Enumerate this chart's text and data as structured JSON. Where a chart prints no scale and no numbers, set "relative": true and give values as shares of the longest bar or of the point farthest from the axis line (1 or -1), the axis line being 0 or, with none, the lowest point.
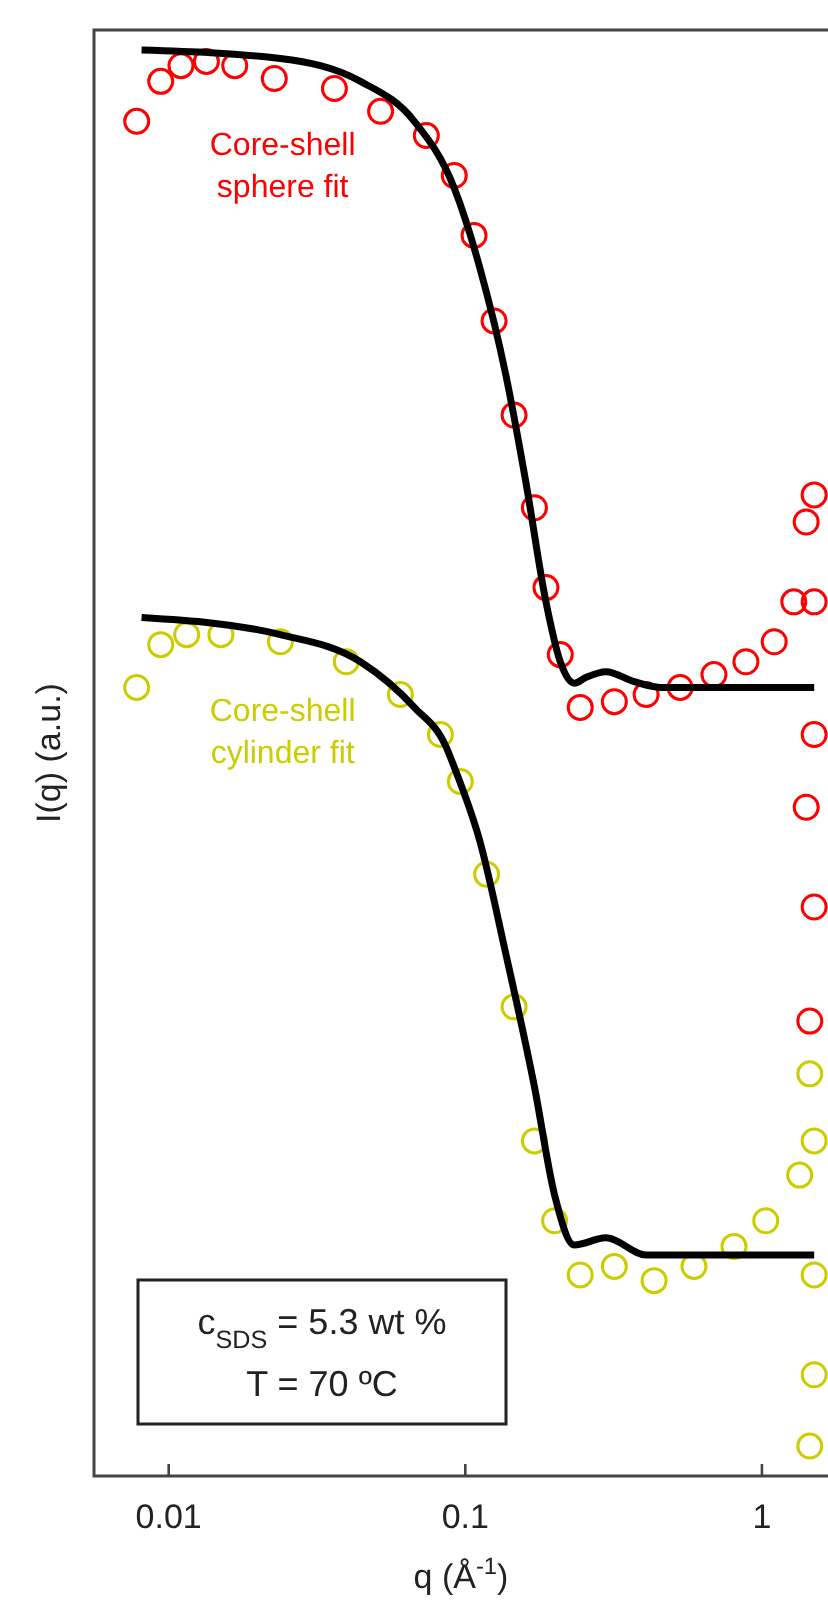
{
  "chart_data": {
    "type": "scatter",
    "relative": true,
    "xlabel": "q (Å$^{-1}$)",
    "ylabel": "I(q) (a.u.)",
    "log": "x",
    "xlim": [
      0.0056,
      1.67
    ],
    "xticks": [
      0.01,
      0.1,
      1
    ],
    "tick_labels": "x",
    "legend": false,
    "marker": "circle",
    "annotations": [
      "c$_{SDS}$ = 5.3 wt %",
      "T = 70 ºC"
    ],
    "series": [
      {
        "name": "Core-shell sphere fit",
        "color": "#ff0000",
        "x": [
          0.0078,
          0.0094,
          0.011,
          0.0134,
          0.0167,
          0.0227,
          0.0362,
          0.0518,
          0.0739,
          0.0918,
          0.107,
          0.125,
          0.146,
          0.171,
          0.187,
          0.209,
          0.244,
          0.318,
          0.407,
          0.53,
          0.689,
          0.883,
          1.1,
          1.28,
          1.41,
          1.5,
          1.5,
          1.5,
          1.41,
          1.5,
          1.45
        ],
        "values": [
          0.95,
          0.978,
          0.989,
          0.992,
          0.989,
          0.98,
          0.973,
          0.957,
          0.94,
          0.912,
          0.87,
          0.81,
          0.744,
          0.679,
          0.623,
          0.576,
          0.539,
          0.543,
          0.548,
          0.553,
          0.562,
          0.571,
          0.585,
          0.613,
          0.669,
          0.688,
          0.613,
          0.52,
          0.469,
          0.399,
          0.319
        ]
      },
      {
        "name": "Core-shell cylinder fit",
        "color": "#cccc00",
        "x": [
          0.0078,
          0.0094,
          0.0115,
          0.015,
          0.0238,
          0.0397,
          0.0604,
          0.0824,
          0.0962,
          0.118,
          0.146,
          0.171,
          0.2,
          0.244,
          0.318,
          0.433,
          0.59,
          0.805,
          1.03,
          1.34,
          1.45,
          1.5,
          1.5,
          1.5,
          1.45
        ],
        "values": [
          0.553,
          0.583,
          0.59,
          0.59,
          0.585,
          0.571,
          0.548,
          0.52,
          0.487,
          0.422,
          0.329,
          0.235,
          0.179,
          0.141,
          0.147,
          0.137,
          0.147,
          0.161,
          0.179,
          0.211,
          0.282,
          0.235,
          0.141,
          0.071,
          0.021
        ]
      },
      {
        "type": "line",
        "marker": "none",
        "color": "#000000",
        "x": [
          0.0081,
          0.0238,
          0.0443,
          0.0673,
          0.0918,
          0.112,
          0.137,
          0.16,
          0.187,
          0.209,
          0.233,
          0.255,
          0.298,
          0.371,
          0.454,
          1.5
        ],
        "values": [
          1.0,
          0.994,
          0.978,
          0.95,
          0.903,
          0.847,
          0.772,
          0.697,
          0.613,
          0.571,
          0.556,
          0.56,
          0.564,
          0.557,
          0.553,
          0.553
        ]
      },
      {
        "type": "line",
        "marker": "none",
        "color": "#000000",
        "x": [
          0.0081,
          0.0238,
          0.0443,
          0.0673,
          0.0863,
          0.0918,
          0.112,
          0.137,
          0.171,
          0.2,
          0.233,
          0.298,
          0.407,
          1.5
        ],
        "values": [
          0.602,
          0.59,
          0.571,
          0.539,
          0.511,
          0.497,
          0.445,
          0.366,
          0.273,
          0.197,
          0.162,
          0.167,
          0.155,
          0.155
        ]
      }
    ]
  }
}
